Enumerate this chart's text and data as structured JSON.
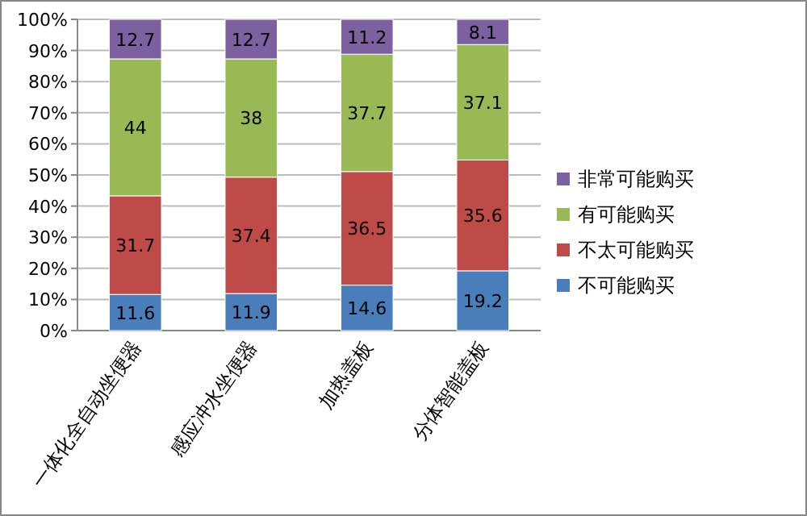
{
  "chart_data": {
    "type": "bar",
    "stacked": true,
    "categories": [
      "一体化全自动坐便器",
      "感应冲水坐便器",
      "加热盖板",
      "分体智能盖板"
    ],
    "series": [
      {
        "name": "不可能购买",
        "color": "#4a7ebb",
        "values": [
          11.6,
          11.9,
          14.6,
          19.2
        ]
      },
      {
        "name": "不太可能购买",
        "color": "#be4b48",
        "values": [
          31.7,
          37.4,
          36.5,
          35.6
        ]
      },
      {
        "name": "有可能购买",
        "color": "#98b954",
        "values": [
          44,
          38,
          37.7,
          37.1
        ]
      },
      {
        "name": "非常可能购买",
        "color": "#7d60a0",
        "values": [
          12.7,
          12.7,
          11.2,
          8.1
        ]
      }
    ],
    "ylim": [
      0,
      100
    ],
    "yticks": [
      {
        "value": 0,
        "label": "0%"
      },
      {
        "value": 10,
        "label": "10%"
      },
      {
        "value": 20,
        "label": "20%"
      },
      {
        "value": 30,
        "label": "30%"
      },
      {
        "value": 40,
        "label": "40%"
      },
      {
        "value": 50,
        "label": "50%"
      },
      {
        "value": 60,
        "label": "60%"
      },
      {
        "value": 70,
        "label": "70%"
      },
      {
        "value": 80,
        "label": "80%"
      },
      {
        "value": 90,
        "label": "90%"
      },
      {
        "value": 100,
        "label": "100%"
      }
    ],
    "grid": "y",
    "legend": "right",
    "data_labels": true
  }
}
